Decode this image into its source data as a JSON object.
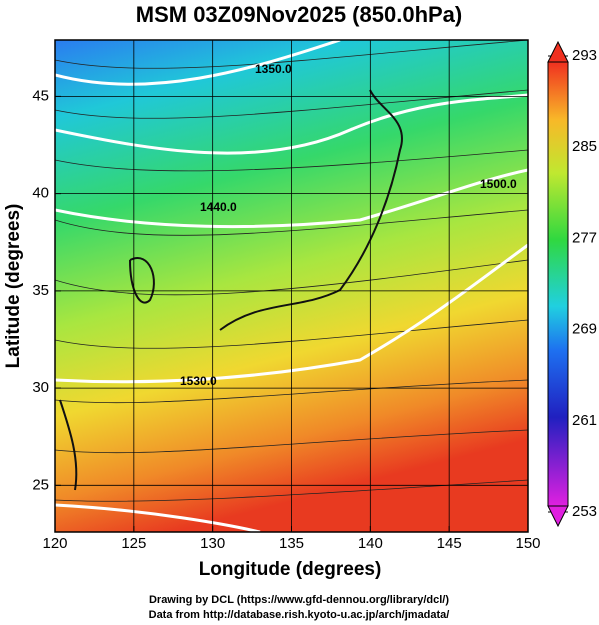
{
  "title": "MSM 03Z09Nov2025 (850.0hPa)",
  "x_axis": {
    "label": "Longitude (degrees)",
    "lim": [
      120,
      150
    ],
    "ticks": [
      120,
      125,
      130,
      135,
      140,
      145,
      150
    ]
  },
  "y_axis": {
    "label": "Latitude  (degrees)",
    "lim": [
      22.6,
      47.9
    ],
    "ticks": [
      25,
      30,
      35,
      40,
      45
    ]
  },
  "colorbar": {
    "lim": [
      253,
      293
    ],
    "ticks": [
      253,
      261,
      269,
      277,
      285,
      293
    ]
  },
  "contour_labels": [
    "1350.0",
    "1440.0",
    "1500.0",
    "1530.0"
  ],
  "footer": [
    "Drawing by DCL (https://www.gfd-dennou.org/library/dcl/)",
    "Data from http://database.rish.kyoto-u.ac.jp/arch/jmadata/"
  ]
}
